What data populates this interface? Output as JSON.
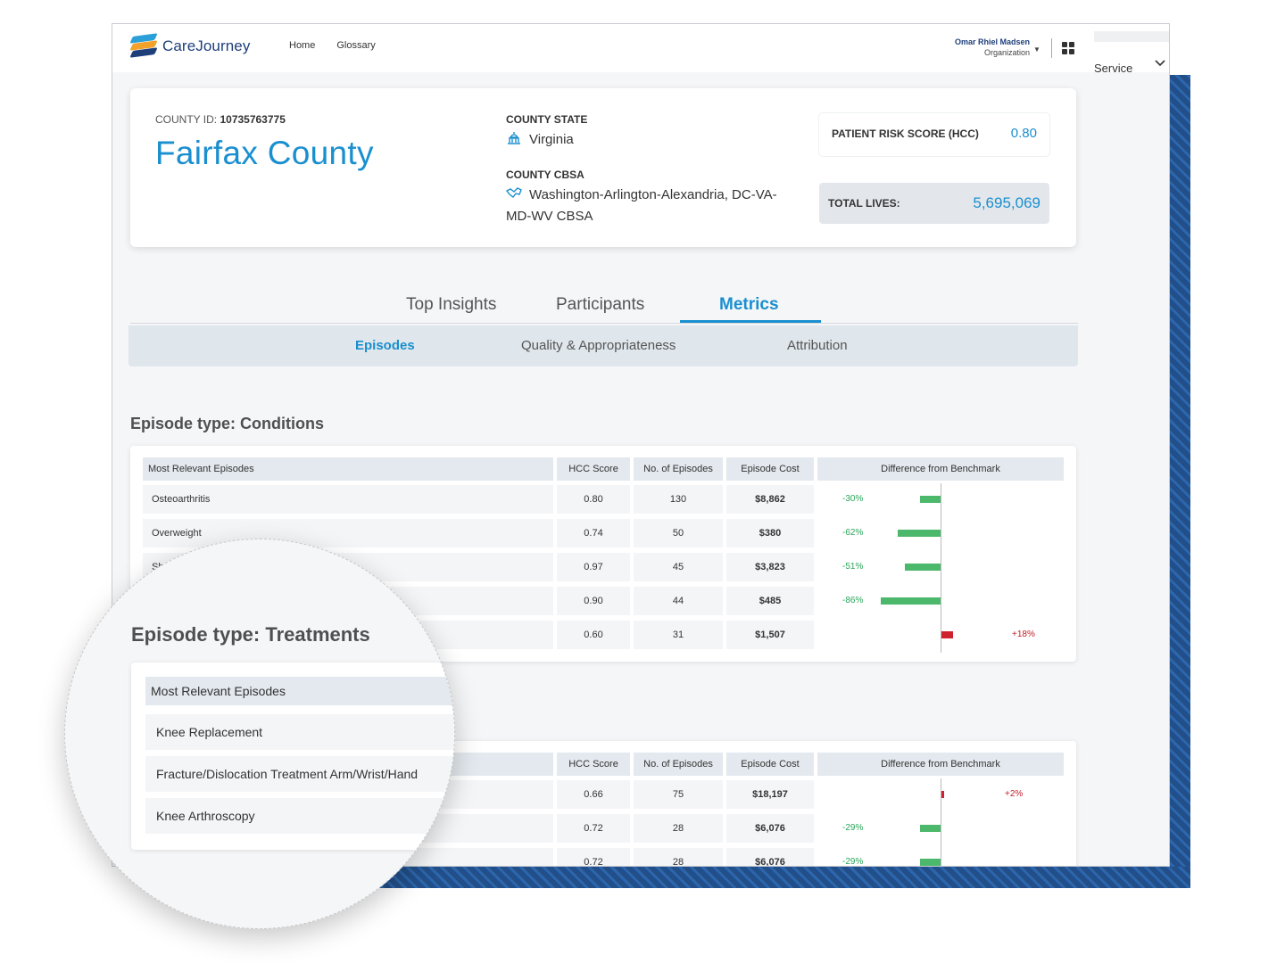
{
  "header": {
    "logo_text": "CareJourney",
    "nav": [
      "Home",
      "Glossary"
    ],
    "user_name": "Omar Rhiel Madsen",
    "user_org": "Organization",
    "service_label": "Service"
  },
  "county": {
    "id_label": "COUNTY ID:",
    "id_value": "10735763775",
    "name": "Fairfax County",
    "state_label": "COUNTY STATE",
    "state_value": "Virginia",
    "cbsa_label": "COUNTY CBSA",
    "cbsa_value_line1": "Washington-Arlington-Alexandria, DC-VA-",
    "cbsa_value_line2": "MD-WV CBSA",
    "risk_label": "PATIENT RISK SCORE (HCC)",
    "risk_value": "0.80",
    "lives_label": "TOTAL LIVES:",
    "lives_value": "5,695,069"
  },
  "tabs": [
    "Top Insights",
    "Participants",
    "Metrics"
  ],
  "subtabs": [
    "Episodes",
    "Quality & Appropriateness",
    "Attribution"
  ],
  "columns": [
    "Most Relevant Episodes",
    "HCC Score",
    "No. of Episodes",
    "Episode Cost",
    "Difference from Benchmark"
  ],
  "conditions": {
    "title": "Episode type: Conditions",
    "rows": [
      {
        "name": "Osteoarthritis",
        "hcc": "0.80",
        "episodes": "130",
        "cost": "$8,862",
        "diff": "-30%",
        "diff_value": -30
      },
      {
        "name": "Overweight",
        "hcc": "0.74",
        "episodes": "50",
        "cost": "$380",
        "diff": "-62%",
        "diff_value": -62
      },
      {
        "name": "Sh",
        "hcc": "0.97",
        "episodes": "45",
        "cost": "$3,823",
        "diff": "-51%",
        "diff_value": -51
      },
      {
        "name": "",
        "hcc": "0.90",
        "episodes": "44",
        "cost": "$485",
        "diff": "-86%",
        "diff_value": -86
      },
      {
        "name": "",
        "hcc": "0.60",
        "episodes": "31",
        "cost": "$1,507",
        "diff": "+18%",
        "diff_value": 18
      }
    ]
  },
  "treatments": {
    "title": "Episode type: Treatments",
    "rows": [
      {
        "name": "Knee Replacement",
        "hcc": "0.66",
        "episodes": "75",
        "cost": "$18,197",
        "diff": "+2%",
        "diff_value": 2
      },
      {
        "name": "Fracture/Dislocation Treatment Arm/Wrist/Hand",
        "hcc": "0.72",
        "episodes": "28",
        "cost": "$6,076",
        "diff": "-29%",
        "diff_value": -29
      },
      {
        "name": "Knee Arthroscopy",
        "hcc": "0.72",
        "episodes": "28",
        "cost": "$6,076",
        "diff": "-29%",
        "diff_value": -29
      }
    ]
  },
  "colors": {
    "accent": "#1a8fcf",
    "positive": "#4cb86b",
    "negative": "#d0222e"
  }
}
